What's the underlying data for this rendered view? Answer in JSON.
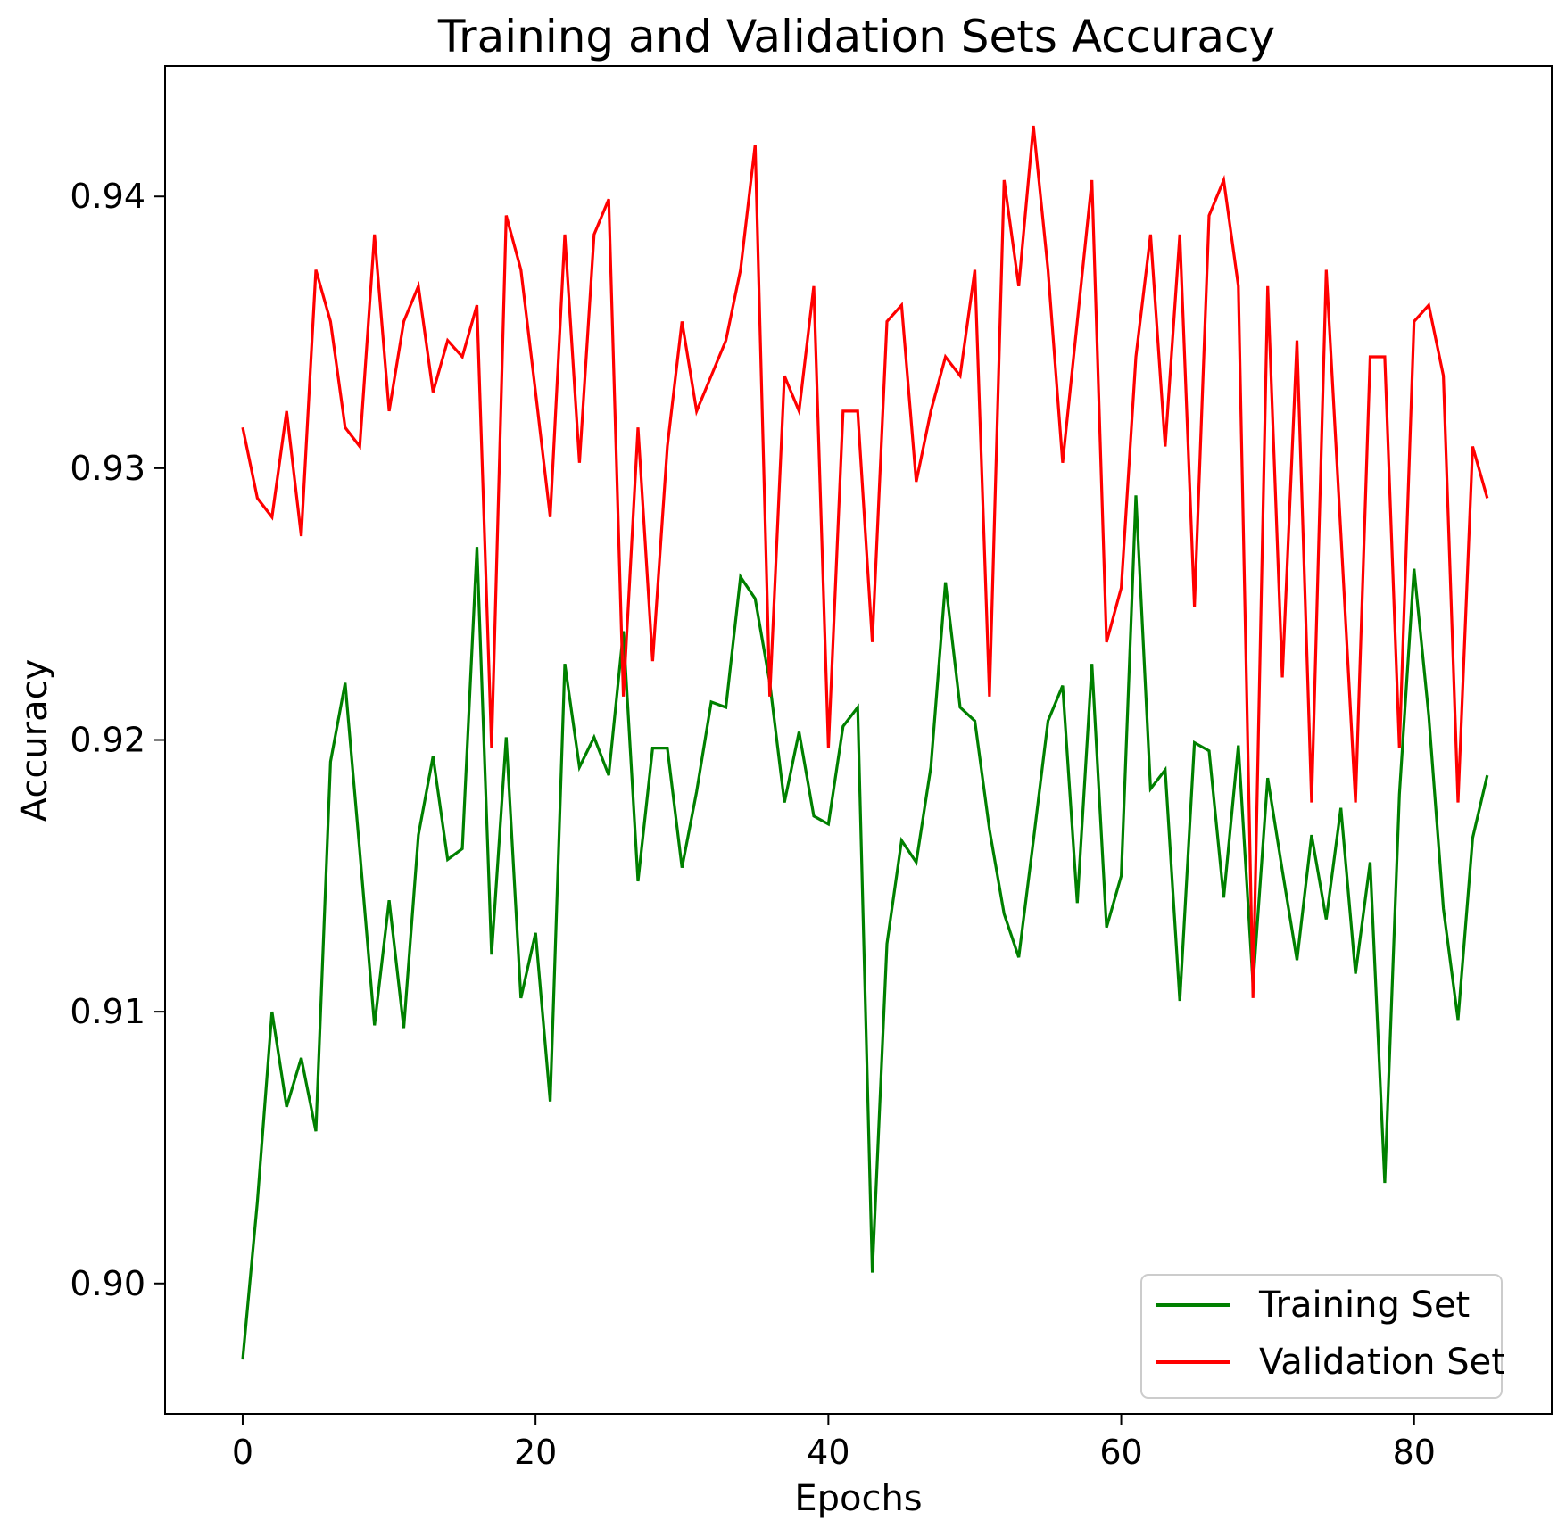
{
  "chart_data": {
    "type": "line",
    "title": "Training and Validation Sets Accuracy",
    "xlabel": "Epochs",
    "ylabel": "Accuracy",
    "xlim": [
      -5.3,
      89.4
    ],
    "ylim": [
      0.8952,
      0.9448
    ],
    "x_ticks": [
      0,
      20,
      40,
      60,
      80
    ],
    "x_tick_labels": [
      "0",
      "20",
      "40",
      "60",
      "80"
    ],
    "y_ticks": [
      0.9,
      0.91,
      0.92,
      0.93,
      0.94
    ],
    "y_tick_labels": [
      "0.90",
      "0.91",
      "0.92",
      "0.93",
      "0.94"
    ],
    "grid": false,
    "legend_position": "lower-right",
    "x": [
      0,
      1,
      2,
      3,
      4,
      5,
      6,
      7,
      8,
      9,
      10,
      11,
      12,
      13,
      14,
      15,
      16,
      17,
      18,
      19,
      20,
      21,
      22,
      23,
      24,
      25,
      26,
      27,
      28,
      29,
      30,
      31,
      32,
      33,
      34,
      35,
      36,
      37,
      38,
      39,
      40,
      41,
      42,
      43,
      44,
      45,
      46,
      47,
      48,
      49,
      50,
      51,
      52,
      53,
      54,
      55,
      56,
      57,
      58,
      59,
      60,
      61,
      62,
      63,
      64,
      65,
      66,
      67,
      68,
      69,
      70,
      71,
      72,
      73,
      74,
      75,
      76,
      77,
      78,
      79,
      80,
      81,
      82,
      83,
      84,
      85
    ],
    "series": [
      {
        "name": "Training Set",
        "color": "#008000",
        "values": [
          0.8972,
          0.903,
          0.91,
          0.9065,
          0.9083,
          0.9056,
          0.9192,
          0.9221,
          0.9159,
          0.9095,
          0.9141,
          0.9094,
          0.9165,
          0.9194,
          0.9156,
          0.916,
          0.9271,
          0.9121,
          0.9201,
          0.9105,
          0.9129,
          0.9067,
          0.9228,
          0.919,
          0.9201,
          0.9187,
          0.924,
          0.9148,
          0.9197,
          0.9197,
          0.9153,
          0.9181,
          0.9214,
          0.9212,
          0.926,
          0.9252,
          0.9221,
          0.9177,
          0.9203,
          0.9172,
          0.9169,
          0.9205,
          0.9212,
          0.9004,
          0.9125,
          0.9163,
          0.9155,
          0.919,
          0.9258,
          0.9212,
          0.9207,
          0.9167,
          0.9136,
          0.912,
          0.9163,
          0.9207,
          0.922,
          0.914,
          0.9228,
          0.9131,
          0.915,
          0.929,
          0.9182,
          0.9189,
          0.9104,
          0.9199,
          0.9196,
          0.9142,
          0.9198,
          0.911,
          0.9186,
          0.9152,
          0.9119,
          0.9165,
          0.9134,
          0.9175,
          0.9114,
          0.9155,
          0.9037,
          0.918,
          0.9263,
          0.9209,
          0.9138,
          0.9097,
          0.9164,
          0.9187
        ]
      },
      {
        "name": "Validation Set",
        "color": "#ff0000",
        "values": [
          0.9315,
          0.9289,
          0.9282,
          0.9321,
          0.9275,
          0.9373,
          0.9354,
          0.9315,
          0.9308,
          0.9386,
          0.9321,
          0.9354,
          0.9367,
          0.9328,
          0.9347,
          0.9341,
          0.936,
          0.9197,
          0.9393,
          0.9373,
          0.9328,
          0.9282,
          0.9386,
          0.9302,
          0.9386,
          0.9399,
          0.9216,
          0.9315,
          0.9229,
          0.9308,
          0.9354,
          0.9321,
          0.9334,
          0.9347,
          0.9373,
          0.9419,
          0.9216,
          0.9334,
          0.9321,
          0.9367,
          0.9197,
          0.9321,
          0.9321,
          0.9236,
          0.9354,
          0.936,
          0.9295,
          0.9321,
          0.9341,
          0.9334,
          0.9373,
          0.9216,
          0.9406,
          0.9367,
          0.9426,
          0.9373,
          0.9302,
          0.9354,
          0.9406,
          0.9236,
          0.9256,
          0.9341,
          0.9386,
          0.9308,
          0.9386,
          0.9249,
          0.9393,
          0.9406,
          0.9367,
          0.9105,
          0.9367,
          0.9223,
          0.9347,
          0.9177,
          0.9373,
          0.9276,
          0.9177,
          0.9341,
          0.9341,
          0.9197,
          0.9354,
          0.936,
          0.9334,
          0.9177,
          0.9308,
          0.9289
        ]
      }
    ]
  }
}
